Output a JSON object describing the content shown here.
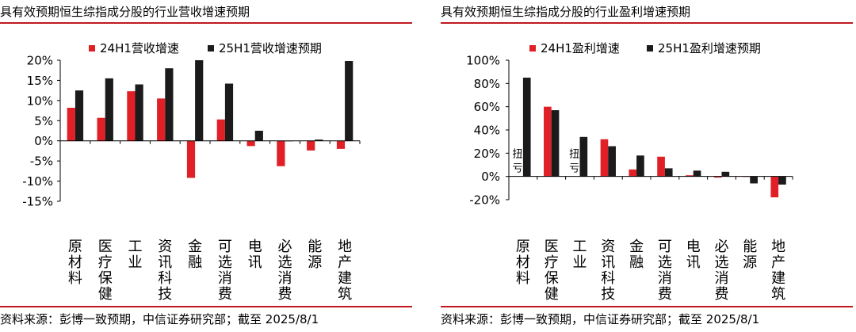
{
  "colors": {
    "accent": "#c0181e",
    "series1": "#e11f26",
    "series2": "#1b1b1b"
  },
  "source_text": "资料来源：彭博一致预期，中信证券研究部；截至 2025/8/1",
  "chart_data": [
    {
      "type": "bar",
      "title": "具有效预期恒生综指成分股的行业营收增速预期",
      "categories": [
        "原材料",
        "医疗保健",
        "工业",
        "资讯科技",
        "金融",
        "可选消费",
        "电讯",
        "必选消费",
        "能源",
        "地产建筑"
      ],
      "series": [
        {
          "name": "24H1营收增速",
          "values": [
            8.2,
            5.7,
            12.3,
            10.5,
            -9.2,
            5.3,
            -1.3,
            -6.3,
            -2.4,
            -2.0
          ]
        },
        {
          "name": "25H1营收增速预期",
          "values": [
            12.5,
            15.5,
            14.0,
            18.0,
            20.0,
            14.2,
            2.5,
            0.0,
            0.3,
            19.8
          ]
        }
      ],
      "ylim": [
        -15,
        20
      ],
      "yticks": [
        20,
        15,
        10,
        5,
        0,
        -5,
        -10,
        -15
      ],
      "ytick_labels": [
        "20%",
        "15%",
        "10%",
        "5%",
        "0%",
        "-5%",
        "-10%",
        "-15%"
      ],
      "xlabel": "",
      "ylabel": "",
      "grid": false,
      "legend": "top-center",
      "annotations": []
    },
    {
      "type": "bar",
      "title": "具有效预期恒生综指成分股的行业盈利增速预期",
      "categories": [
        "原材料",
        "医疗保健",
        "工业",
        "资讯科技",
        "金融",
        "可选消费",
        "电讯",
        "必选消费",
        "能源",
        "地产建筑"
      ],
      "series": [
        {
          "name": "24H1盈利增速",
          "values": [
            null,
            60,
            null,
            32,
            6,
            17,
            1,
            -1,
            0,
            -18
          ]
        },
        {
          "name": "25H1盈利增速预期",
          "values": [
            85,
            57,
            34,
            26,
            18,
            7,
            5,
            4,
            -6,
            -7
          ]
        }
      ],
      "ylim": [
        -20,
        100
      ],
      "yticks": [
        100,
        80,
        60,
        40,
        20,
        0,
        -20
      ],
      "ytick_labels": [
        "100%",
        "80%",
        "60%",
        "40%",
        "20%",
        "0%",
        "-20%"
      ],
      "xlabel": "",
      "ylabel": "",
      "grid": false,
      "legend": "top-center",
      "annotations": [
        {
          "category_index": 0,
          "text": "扭亏"
        },
        {
          "category_index": 2,
          "text": "扭亏"
        }
      ]
    }
  ]
}
